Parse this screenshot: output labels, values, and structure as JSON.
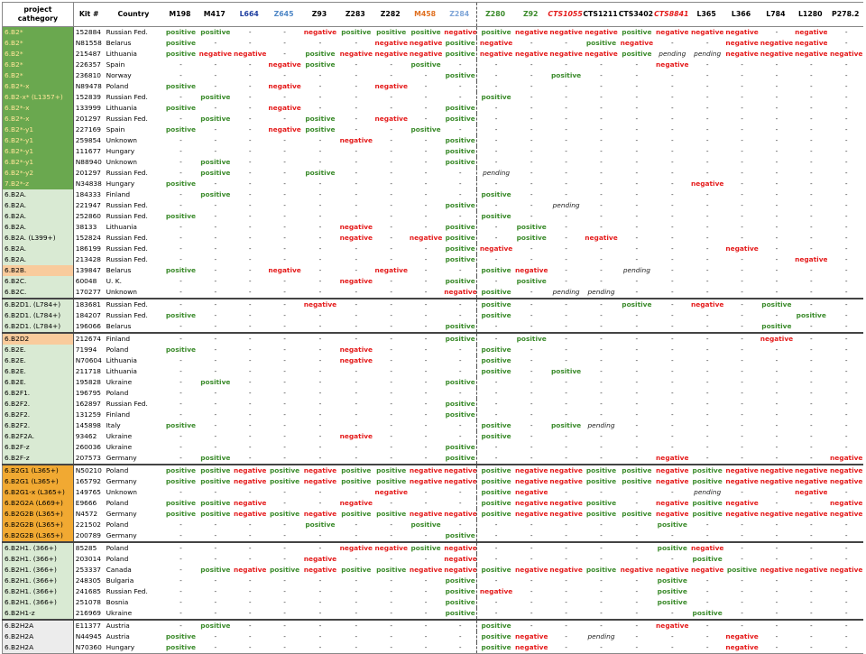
{
  "columns": [
    {
      "label": "project cathegory",
      "color": "#000000",
      "italic": false
    },
    {
      "label": "Kit #",
      "color": "#000000",
      "italic": false
    },
    {
      "label": "Country",
      "color": "#000000",
      "italic": false
    },
    {
      "label": "M198",
      "color": "#000000",
      "italic": false
    },
    {
      "label": "M417",
      "color": "#000000",
      "italic": false
    },
    {
      "label": "L664",
      "color": "#1f3fa0",
      "italic": false
    },
    {
      "label": "Z645",
      "color": "#4f87c6",
      "italic": false
    },
    {
      "label": "Z93",
      "color": "#000000",
      "italic": false
    },
    {
      "label": "Z283",
      "color": "#000000",
      "italic": false
    },
    {
      "label": "Z282",
      "color": "#000000",
      "italic": false
    },
    {
      "label": "M458",
      "color": "#e07020",
      "italic": false
    },
    {
      "label": "Z284",
      "color": "#7fa6d8",
      "italic": false
    },
    {
      "label": "Z280",
      "color": "#3a8a2a",
      "italic": false
    },
    {
      "label": "Z92",
      "color": "#3a8a2a",
      "italic": false
    },
    {
      "label": "CTS1055",
      "color": "#e41a1a",
      "italic": true
    },
    {
      "label": "CTS1211",
      "color": "#000000",
      "italic": false
    },
    {
      "label": "CTS3402",
      "color": "#000000",
      "italic": false
    },
    {
      "label": "CTS8841",
      "color": "#e41a1a",
      "italic": true
    },
    {
      "label": "L365",
      "color": "#000000",
      "italic": false
    },
    {
      "label": "L366",
      "color": "#000000",
      "italic": false
    },
    {
      "label": "L784",
      "color": "#000000",
      "italic": false
    },
    {
      "label": "L1280",
      "color": "#000000",
      "italic": false
    },
    {
      "label": "P278.2",
      "color": "#000000",
      "italic": false
    }
  ],
  "legend": {
    "p": "positive",
    "n": "negative",
    "e": "pending",
    "d": "-"
  },
  "category_colors": {
    "dg": "#6aa84f",
    "lg": "#d9ead3",
    "pk": "#f9cb9c",
    "or": "#f1a932",
    "gy": "#ececec"
  },
  "category_text_colors": {
    "dg": "#ffe699",
    "lg": "#000000",
    "pk": "#000000",
    "or": "#000000",
    "gy": "#000000"
  },
  "rows": [
    {
      "cat": "6.B2*",
      "bg": "dg",
      "kit": "152884",
      "country": "Russian Fed.",
      "v": "ppddnpppnpnnnpnnndn"
    },
    {
      "cat": "6.B2*",
      "bg": "dg",
      "kit": "N81558",
      "country": "Belarus",
      "v": "pdddddnnpnddpnddnnn"
    },
    {
      "cat": "6.B2*",
      "bg": "dg",
      "kit": "215487",
      "country": "Lithuania",
      "v": "pnndpnnnpnnnnpeennnnn"
    },
    {
      "cat": "6.B2*",
      "bg": "dg",
      "kit": "226357",
      "country": "Spain",
      "v": "dddnpddpddddddnddd"
    },
    {
      "cat": "6.B2*",
      "bg": "dg",
      "kit": "236810",
      "country": "Norway",
      "v": "ddddddddpddpddddddd"
    },
    {
      "cat": "6.B2*-x",
      "bg": "dg",
      "kit": "N89478",
      "country": "Poland",
      "v": "pddnddnddddddddddd"
    },
    {
      "cat": "6.B2-x* (L1357+)",
      "bg": "dg",
      "kit": "152839",
      "country": "Russian Fed.",
      "v": "dpdddddddpdddddddddd"
    },
    {
      "cat": "6.B2*-x",
      "bg": "dg",
      "kit": "133999",
      "country": "Lithuania",
      "v": "pddnddddpdddddddddd"
    },
    {
      "cat": "6.B2*-x",
      "bg": "dg",
      "kit": "201297",
      "country": "Russian Fed.",
      "v": "dpddpdndpdddddddddd"
    },
    {
      "cat": "6.B2*-y1",
      "bg": "dg",
      "kit": "227169",
      "country": "Spain",
      "v": "pddnpddpddddddddddd"
    },
    {
      "cat": "6.B2*-y1",
      "bg": "dg",
      "kit": "259854",
      "country": "Unknown",
      "v": "dddddnddpddddddddddd"
    },
    {
      "cat": "6.B2*-y1",
      "bg": "dg",
      "kit": "111677",
      "country": "Hungary",
      "v": "ddddddddpdddddddddd"
    },
    {
      "cat": "6.B2*-y1",
      "bg": "dg",
      "kit": "N88940",
      "country": "Unknown",
      "v": "dpddddddpdddddddddd"
    },
    {
      "cat": "6.B2*-y2",
      "bg": "dg",
      "kit": "201297",
      "country": "Russian Fed.",
      "v": "dpddpddddeddddddddd"
    },
    {
      "cat": "7.B2*-z",
      "bg": "dg",
      "kit": "N34838",
      "country": "Hungary",
      "v": "pddddddddddddddnddd"
    },
    {
      "cat": "6.B2A.",
      "bg": "lg",
      "kit": "184333",
      "country": "Finland",
      "v": "dpdddddddpdddddddddd"
    },
    {
      "cat": "6.B2A.",
      "bg": "lg",
      "kit": "221947",
      "country": "Russian Fed.",
      "v": "ddddddddpddedddddddd"
    },
    {
      "cat": "6.B2A.",
      "bg": "lg",
      "kit": "252860",
      "country": "Russian Fed.",
      "v": "pddddddddpdddddddddd"
    },
    {
      "cat": "6.B2A.",
      "bg": "lg",
      "kit": "38133",
      "country": "Lithuania",
      "v": "dddddnddpdpdddddddd"
    },
    {
      "cat": "6.B2A. (L399+)",
      "bg": "lg",
      "kit": "152824",
      "country": "Russian Fed.",
      "v": "dddddndnpdpdnddddddd"
    },
    {
      "cat": "6.B2A.",
      "bg": "lg",
      "kit": "186199",
      "country": "Russian Fed.",
      "v": "ddddddddpnddddddnddd"
    },
    {
      "cat": "6.B2A.",
      "bg": "lg",
      "kit": "213428",
      "country": "Russian Fed.",
      "v": "ddddddddpdddddddddnd"
    },
    {
      "cat": "6.B2B.",
      "bg": "pk",
      "kit": "139847",
      "country": "Belarus",
      "v": "pddnddnddpnddeddddd"
    },
    {
      "cat": "6.B2C.",
      "bg": "lg",
      "kit": "60048",
      "country": "U. K.",
      "v": "dddddnddpdpddddddd"
    },
    {
      "cat": "6.B2C.",
      "bg": "lg",
      "kit": "170277",
      "country": "Unknown",
      "v": "ddddddddnpdeedddddd"
    },
    {
      "cat": "6.B2D1. (L784+)",
      "bg": "lg",
      "kit": "183681",
      "country": "Russian Fed.",
      "v": "ddddnddddpdddpdndpdd"
    },
    {
      "cat": "6.B2D1. (L784+)",
      "bg": "lg",
      "kit": "184207",
      "country": "Russian Fed.",
      "v": "pddddddddpddddddddpdd"
    },
    {
      "cat": "6.B2D1. (L784+)",
      "bg": "lg",
      "kit": "196066",
      "country": "Belarus",
      "v": "ddddddddpddddddddpdd"
    },
    {
      "cat": "6.B2D2",
      "bg": "pk",
      "kit": "212674",
      "country": "Finland",
      "v": "ddddddddpdpddddddndd"
    },
    {
      "cat": "6.B2E.",
      "bg": "lg",
      "kit": "71994",
      "country": "Poland",
      "v": "pddddndddpdddddddddd"
    },
    {
      "cat": "6.B2E.",
      "bg": "lg",
      "kit": "N70604",
      "country": "Lithuania",
      "v": "dddddndddpdddddddddd"
    },
    {
      "cat": "6.B2E.",
      "bg": "lg",
      "kit": "211718",
      "country": "Lithuania",
      "v": "dddddddddpdpdddddddd"
    },
    {
      "cat": "6.B2E.",
      "bg": "lg",
      "kit": "195828",
      "country": "Ukraine",
      "v": "dpddddddpdddddddddd"
    },
    {
      "cat": "6.B2F1.",
      "bg": "lg",
      "kit": "196795",
      "country": "Poland",
      "v": "ddddddddddddddddddd"
    },
    {
      "cat": "6.B2F2.",
      "bg": "lg",
      "kit": "162897",
      "country": "Russian Fed.",
      "v": "ddddddddpdddddddddd"
    },
    {
      "cat": "6.B2F2.",
      "bg": "lg",
      "kit": "131259",
      "country": "Finland",
      "v": "ddddddddpdddddddddd"
    },
    {
      "cat": "6.B2F2.",
      "bg": "lg",
      "kit": "145898",
      "country": "Italy",
      "v": "pddddddddpdpeddddddd"
    },
    {
      "cat": "6.B2F2A.",
      "bg": "lg",
      "kit": "93462",
      "country": "Ukraine",
      "v": "dddddndddpddddddddd"
    },
    {
      "cat": "6.B2F-z",
      "bg": "lg",
      "kit": "260036",
      "country": "Ukraine",
      "v": "ddddddddpdddddddddd"
    },
    {
      "cat": "6.B2F-z",
      "bg": "lg",
      "kit": "207573",
      "country": "Germany",
      "v": "dpddddddpdddddnddddn"
    },
    {
      "cat": "6.B2G1 (L365+)",
      "bg": "or",
      "kit": "N50210",
      "country": "Poland",
      "v": "ppnpnppnnpnnppnpnnnn"
    },
    {
      "cat": "6.B2G1 (L365+)",
      "bg": "or",
      "kit": "165792",
      "country": "Germany",
      "v": "ppnpnppnnpnnppnpnnnn"
    },
    {
      "cat": "6.B2G1-x (L365+)",
      "bg": "or",
      "kit": "149765",
      "country": "Unknown",
      "v": "ddddddnddpnddddeddnd"
    },
    {
      "cat": "6.B2G2A (L669+)",
      "bg": "or",
      "kit": "E9666",
      "country": "Poland",
      "v": "ppnddndddpnnpdnpnddn"
    },
    {
      "cat": "6.B2G2B (L365+)",
      "bg": "or",
      "kit": "N4572",
      "country": "Germany",
      "v": "ppnpnppnnpnnppnpnnnn"
    },
    {
      "cat": "6.B2G2B (L365+)",
      "bg": "or",
      "kit": "221502",
      "country": "Poland",
      "v": "ddddpddpddddddpdddd"
    },
    {
      "cat": "6.B2G2B (L365+)",
      "bg": "or",
      "kit": "200789",
      "country": "Germany",
      "v": "ddddddddpdddddddddd"
    },
    {
      "cat": "6.B2H1. (366+)",
      "bg": "lg",
      "kit": "85285",
      "country": "Poland",
      "v": "dddddnnpndddddpnddd"
    },
    {
      "cat": "6.B2H1. (366+)",
      "bg": "lg",
      "kit": "203014",
      "country": "Poland",
      "v": "ddddndddnddddddpddd"
    },
    {
      "cat": "6.B2H1. (366+)",
      "bg": "lg",
      "kit": "253337",
      "country": "Canada",
      "v": "dpnpnppnnpnnpnnnpnnn"
    },
    {
      "cat": "6.B2H1. (366+)",
      "bg": "lg",
      "kit": "248305",
      "country": "Bulgaria",
      "v": "ddddddddpdddddpddd"
    },
    {
      "cat": "6.B2H1. (366+)",
      "bg": "lg",
      "kit": "241685",
      "country": "Russian Fed.",
      "v": "ddddddddpnddddpddd"
    },
    {
      "cat": "6.B2H1. (366+)",
      "bg": "lg",
      "kit": "251078",
      "country": "Bosnia",
      "v": "ddddddddpdddddpddd"
    },
    {
      "cat": "6.B2H1-z",
      "bg": "lg",
      "kit": "216969",
      "country": "Ukraine",
      "v": "ddddddddpddddddpddd"
    },
    {
      "cat": "6.B2H2A",
      "bg": "gy",
      "kit": "E11377",
      "country": "Austria",
      "v": "dpdddddddpddddnddddd"
    },
    {
      "cat": "6.B2H2A",
      "bg": "gy",
      "kit": "N44945",
      "country": "Austria",
      "v": "pddddddddpndedddnddd"
    },
    {
      "cat": "6.B2H2A",
      "bg": "gy",
      "kit": "N70360",
      "country": "Hungary",
      "v": "pddddddddpndddddnddd"
    }
  ],
  "group_ends": [
    24,
    27,
    39,
    46,
    53
  ]
}
